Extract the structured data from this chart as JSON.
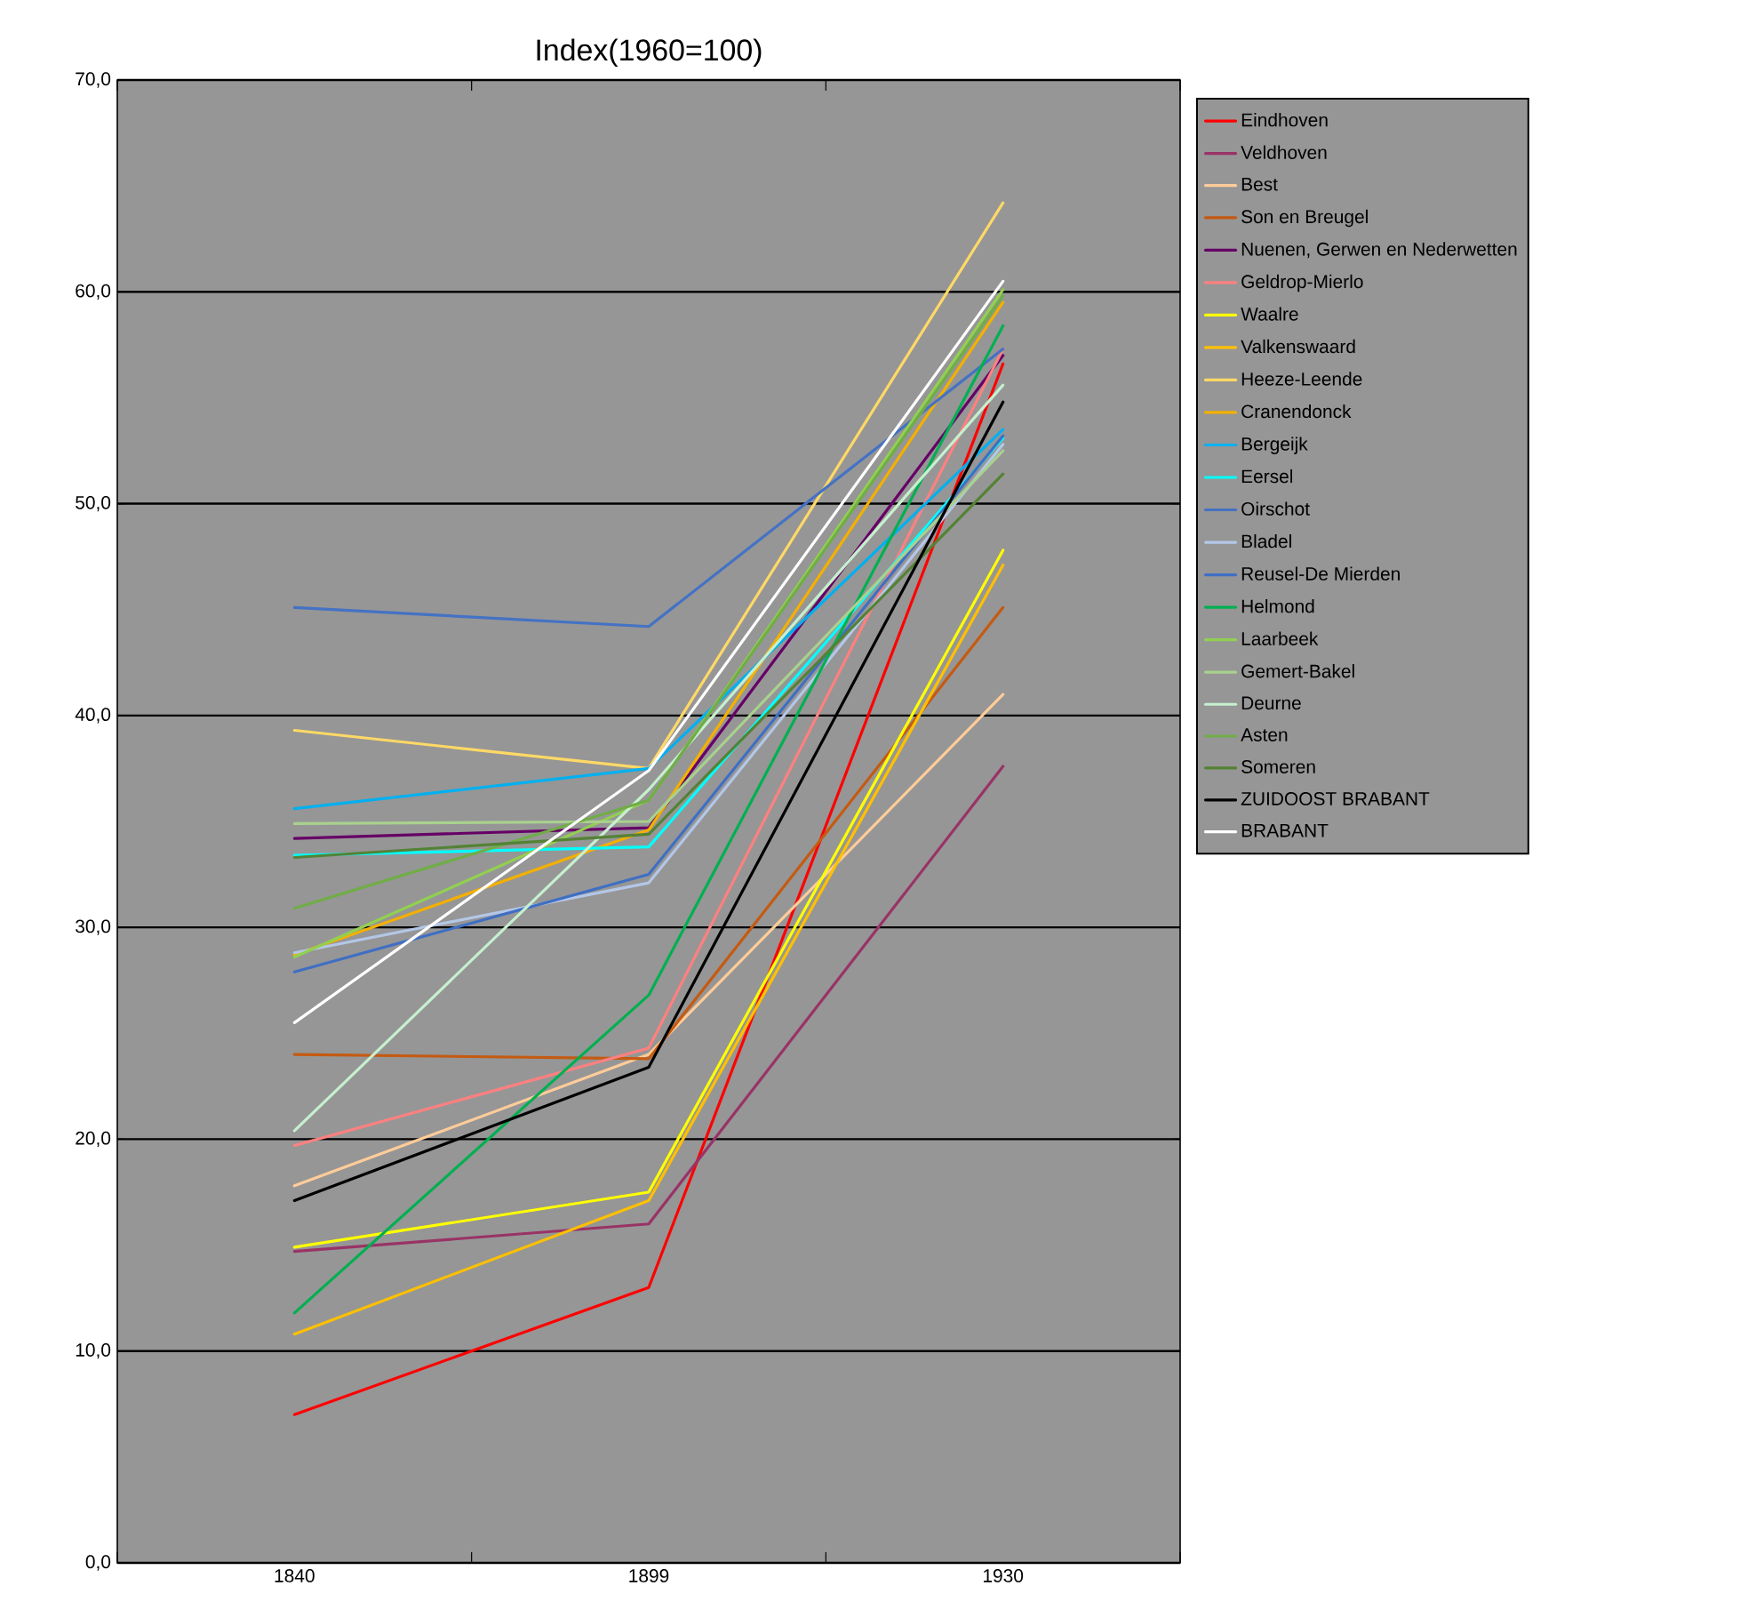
{
  "chart_data": {
    "type": "line",
    "title": "Index(1960=100)",
    "categories": [
      "1840",
      "1899",
      "1930"
    ],
    "ylim": [
      0,
      70
    ],
    "yticks": [
      {
        "value": 0,
        "label": "0,0"
      },
      {
        "value": 10,
        "label": "10,0"
      },
      {
        "value": 20,
        "label": "20,0"
      },
      {
        "value": 30,
        "label": "30,0"
      },
      {
        "value": 40,
        "label": "40,0"
      },
      {
        "value": 50,
        "label": "50,0"
      },
      {
        "value": 60,
        "label": "60,0"
      },
      {
        "value": 70,
        "label": "70,0"
      }
    ],
    "grid": "y",
    "legend": "right",
    "marker": "none",
    "line_style": "solid",
    "series": [
      {
        "name": "Eindhoven",
        "color": "#ff0000",
        "values": [
          7.0,
          13.0,
          56.6
        ]
      },
      {
        "name": "Veldhoven",
        "color": "#993366",
        "values": [
          14.7,
          16.0,
          37.6
        ]
      },
      {
        "name": "Best",
        "color": "#ffcc99",
        "values": [
          17.8,
          24.0,
          41.0
        ]
      },
      {
        "name": "Son en Breugel",
        "color": "#c55a11",
        "values": [
          24.0,
          23.8,
          45.1
        ]
      },
      {
        "name": "Nuenen, Gerwen en Nederwetten",
        "color": "#660066",
        "values": [
          34.2,
          34.7,
          57.0
        ]
      },
      {
        "name": "Geldrop-Mierlo",
        "color": "#ff8080",
        "values": [
          19.7,
          24.3,
          57.3
        ]
      },
      {
        "name": "Waalre",
        "color": "#ffff00",
        "values": [
          14.9,
          17.5,
          47.8
        ]
      },
      {
        "name": "Valkenswaard",
        "color": "#ffc000",
        "values": [
          10.8,
          17.1,
          47.1
        ]
      },
      {
        "name": "Heeze-Leende",
        "color": "#ffd966",
        "values": [
          39.3,
          37.5,
          64.2
        ]
      },
      {
        "name": "Cranendonck",
        "color": "#f4b000",
        "values": [
          28.7,
          34.6,
          59.5
        ]
      },
      {
        "name": "Bergeijk",
        "color": "#00b0f0",
        "values": [
          35.6,
          37.5,
          53.5
        ]
      },
      {
        "name": "Eersel",
        "color": "#00ffff",
        "values": [
          33.4,
          33.8,
          53.1
        ]
      },
      {
        "name": "Oirschot",
        "color": "#4472c4",
        "values": [
          45.1,
          44.2,
          57.3
        ]
      },
      {
        "name": "Bladel",
        "color": "#b4c7e7",
        "values": [
          28.8,
          32.1,
          52.8
        ]
      },
      {
        "name": "Reusel-De Mierden",
        "color": "#3f6fc4",
        "values": [
          27.9,
          32.5,
          53.2
        ]
      },
      {
        "name": "Helmond",
        "color": "#00b050",
        "values": [
          11.8,
          26.8,
          58.4
        ]
      },
      {
        "name": "Laarbeek",
        "color": "#92d050",
        "values": [
          28.6,
          36.0,
          60.1
        ]
      },
      {
        "name": "Gemert-Bakel",
        "color": "#a9d18e",
        "values": [
          34.9,
          35.0,
          52.5
        ]
      },
      {
        "name": "Deurne",
        "color": "#c6efce",
        "values": [
          20.4,
          36.5,
          55.6
        ]
      },
      {
        "name": "Asten",
        "color": "#70ad47",
        "values": [
          30.9,
          36.0,
          59.8
        ]
      },
      {
        "name": "Someren",
        "color": "#548235",
        "values": [
          33.3,
          34.4,
          51.4
        ]
      },
      {
        "name": "ZUIDOOST BRABANT",
        "color": "#000000",
        "values": [
          17.1,
          23.4,
          54.8
        ]
      },
      {
        "name": "BRABANT",
        "color": "#ffffff",
        "values": [
          25.5,
          37.4,
          60.5
        ]
      }
    ]
  }
}
